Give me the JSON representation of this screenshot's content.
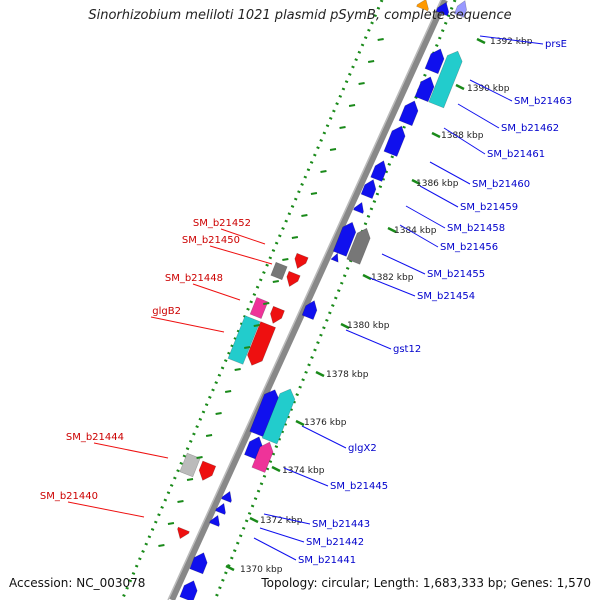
{
  "title": "Sinorhizobium meliloti 1021 plasmid pSymB, complete sequence",
  "footer": {
    "accession": "Accession: NC_003078",
    "info": "Topology: circular; Length: 1,683,333 bp; Genes: 1,570"
  },
  "colors": {
    "forward": "#1010ee",
    "reverse": "#ee1010",
    "gap": "#ffffff",
    "axis": "#888888",
    "tick": "#1a8a1a",
    "cyan": "#22cccc",
    "magenta": "#ee3399",
    "gray": "#777777",
    "orange": "#ff9900"
  },
  "kbp_ticks": [
    {
      "label": "1392 kbp"
    },
    {
      "label": "1390 kbp"
    },
    {
      "label": "1388 kbp"
    },
    {
      "label": "1386 kbp"
    },
    {
      "label": "1384 kbp"
    },
    {
      "label": "1382 kbp"
    },
    {
      "label": "1380 kbp"
    },
    {
      "label": "1378 kbp"
    },
    {
      "label": "1376 kbp"
    },
    {
      "label": "1374 kbp"
    },
    {
      "label": "1372 kbp"
    },
    {
      "label": "1370 kbp"
    }
  ],
  "right_labels": [
    {
      "text": "prsE"
    },
    {
      "text": "SM_b21463"
    },
    {
      "text": "SM_b21462"
    },
    {
      "text": "SM_b21461"
    },
    {
      "text": "SM_b21460"
    },
    {
      "text": "SM_b21459"
    },
    {
      "text": "SM_b21458"
    },
    {
      "text": "SM_b21456"
    },
    {
      "text": "SM_b21455"
    },
    {
      "text": "SM_b21454"
    },
    {
      "text": "gst12"
    },
    {
      "text": "glgX2"
    },
    {
      "text": "SM_b21445"
    },
    {
      "text": "SM_b21443"
    },
    {
      "text": "SM_b21442"
    },
    {
      "text": "SM_b21441"
    }
  ],
  "left_labels": [
    {
      "text": "SM_b21452"
    },
    {
      "text": "SM_b21450"
    },
    {
      "text": "SM_b21448"
    },
    {
      "text": "glgB2"
    },
    {
      "text": "SM_b21444"
    },
    {
      "text": "SM_b21440"
    }
  ]
}
